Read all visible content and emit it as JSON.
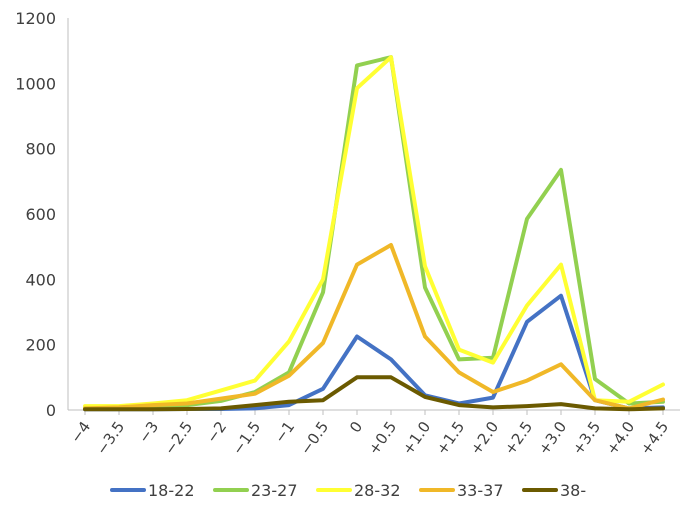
{
  "chart_data": {
    "type": "line",
    "title": "",
    "xlabel": "",
    "ylabel": "",
    "ylim": [
      0,
      1200
    ],
    "yticks": [
      0,
      200,
      400,
      600,
      800,
      1000,
      1200
    ],
    "grid": false,
    "legend": "bottom",
    "x": [
      "−4",
      "−3.5",
      "−3",
      "−2.5",
      "−2",
      "−1.5",
      "−1",
      "−0.5",
      "0",
      "+0.5",
      "+1.0",
      "+1.5",
      "+2.0",
      "+2.5",
      "+3.0",
      "+3.5",
      "+4.0",
      "+4.5"
    ],
    "series": [
      {
        "name": "18-22",
        "color": "#4472C4",
        "values": [
          2,
          2,
          2,
          3,
          3,
          5,
          15,
          65,
          225,
          155,
          45,
          20,
          38,
          270,
          350,
          30,
          5,
          8
        ]
      },
      {
        "name": "23-27",
        "color": "#92D050",
        "values": [
          5,
          8,
          10,
          15,
          28,
          55,
          115,
          360,
          1055,
          1080,
          375,
          155,
          160,
          585,
          735,
          95,
          20,
          25
        ]
      },
      {
        "name": "28-32",
        "color": "#FFFF33",
        "values": [
          12,
          12,
          20,
          30,
          60,
          90,
          210,
          400,
          985,
          1080,
          440,
          185,
          145,
          320,
          445,
          30,
          25,
          78
        ]
      },
      {
        "name": "33-37",
        "color": "#F0B828",
        "values": [
          5,
          8,
          15,
          20,
          35,
          50,
          105,
          205,
          445,
          505,
          225,
          115,
          55,
          90,
          140,
          30,
          5,
          32
        ]
      },
      {
        "name": "38-",
        "color": "#6B5A00",
        "values": [
          2,
          2,
          2,
          3,
          5,
          15,
          25,
          30,
          100,
          100,
          40,
          15,
          8,
          12,
          18,
          5,
          2,
          5
        ]
      }
    ]
  }
}
